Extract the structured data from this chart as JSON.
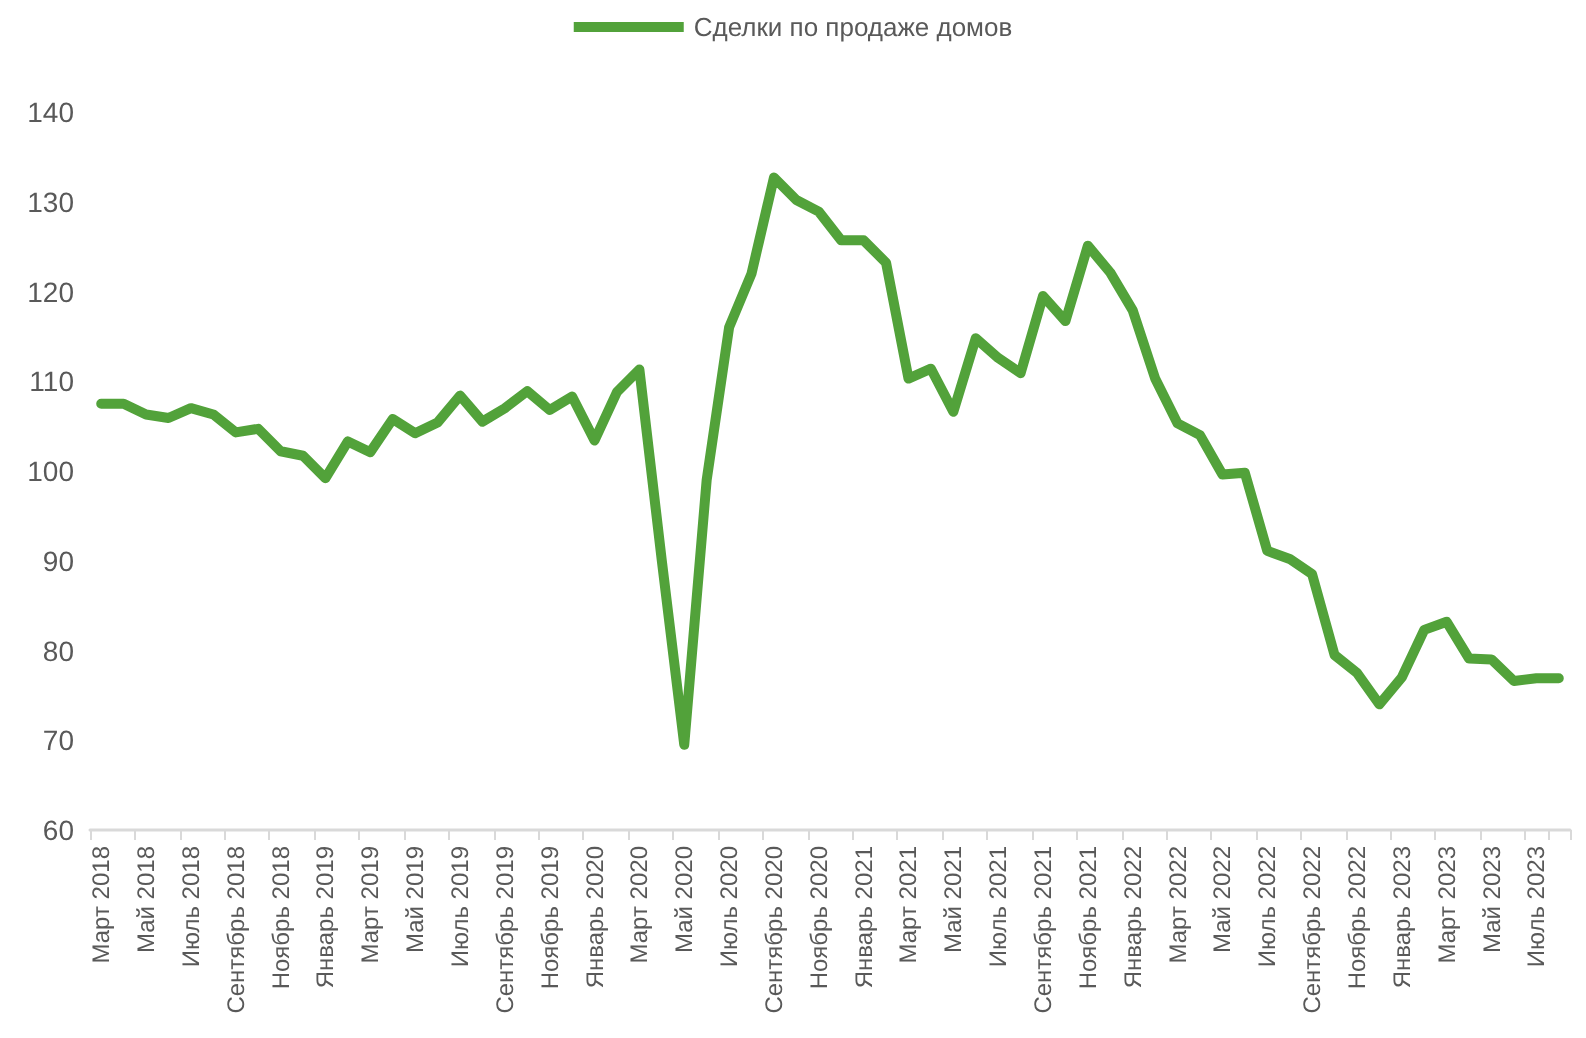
{
  "chart_data": {
    "type": "line",
    "categories": [
      "Март 2018",
      null,
      "Май 2018",
      null,
      "Июль 2018",
      null,
      "Сентябрь 2018",
      null,
      "Ноябрь 2018",
      null,
      "Январь 2019",
      null,
      "Март 2019",
      null,
      "Май 2019",
      null,
      "Июль 2019",
      null,
      "Сентябрь 2019",
      null,
      "Ноябрь 2019",
      null,
      "Январь 2020",
      null,
      "Март 2020",
      null,
      "Май 2020",
      null,
      "Июль 2020",
      null,
      "Сентябрь 2020",
      null,
      "Ноябрь 2020",
      null,
      "Январь 2021",
      null,
      "Март 2021",
      null,
      "Май 2021",
      null,
      "Июль 2021",
      null,
      "Сентябрь 2021",
      null,
      "Ноябрь 2021",
      null,
      "Январь 2022",
      null,
      "Март 2022",
      null,
      "Май 2022",
      null,
      "Июль 2022",
      null,
      "Сентябрь 2022",
      null,
      "Ноябрь 2022",
      null,
      "Январь 2023",
      null,
      "Март 2023",
      null,
      "Май 2023",
      null,
      "Июль 2023",
      null
    ],
    "series": [
      {
        "name": "Сделки по продаже домов",
        "color": "#52a23a",
        "values": [
          107.5,
          107.5,
          106.3,
          105.9,
          107.0,
          106.3,
          104.3,
          104.7,
          102.2,
          101.7,
          99.2,
          103.3,
          102.1,
          105.8,
          104.2,
          105.4,
          108.4,
          105.5,
          107.0,
          108.9,
          106.8,
          108.3,
          103.4,
          108.8,
          111.3,
          90,
          69.5,
          99,
          116,
          122,
          132.7,
          130.2,
          128.9,
          125.7,
          125.7,
          123.2,
          110.3,
          111.4,
          106.6,
          114.8,
          112.6,
          110.9,
          119.5,
          116.7,
          125.1,
          122.1,
          117.9,
          110.3,
          105.3,
          104.0,
          99.6,
          99.8,
          91.1,
          90.2,
          88.5,
          79.5,
          77.5,
          74.0,
          77.0,
          82.3,
          83.2,
          79.1,
          79.0,
          76.6,
          76.9,
          76.9
        ]
      }
    ],
    "ylim": [
      60,
      140
    ],
    "yticks": [
      60,
      70,
      80,
      90,
      100,
      110,
      120,
      130,
      140
    ],
    "grid": false,
    "legend": "top",
    "marker": "none",
    "line_style": "solid"
  }
}
